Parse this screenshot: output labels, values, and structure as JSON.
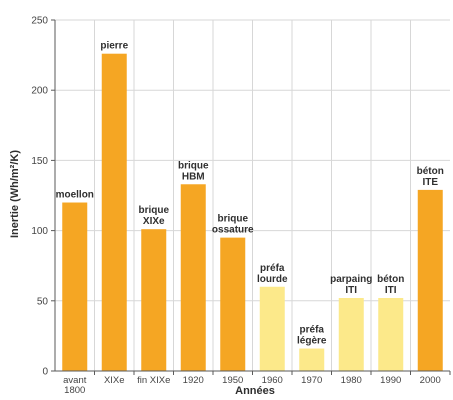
{
  "chart_data": {
    "type": "bar",
    "ylabel": "Inertie (Wh/m²/K)",
    "xlabel": "Années",
    "ylim": [
      0,
      250
    ],
    "yticks": [
      0,
      50,
      100,
      150,
      200,
      250
    ],
    "grid": true,
    "categories": [
      "avant 1800",
      "XIXe",
      "fin XIXe",
      "1920",
      "1950",
      "1960",
      "1970",
      "1980",
      "1990",
      "2000"
    ],
    "values": [
      120,
      226,
      101,
      133,
      95,
      60,
      16,
      52,
      52,
      129
    ],
    "bar_labels": [
      "moellon",
      "pierre",
      "brique XIXe",
      "brique HBM",
      "brique ossature",
      "préfa lourde",
      "préfa légère",
      "parpaing ITI",
      "béton ITI",
      "béton ITE"
    ],
    "colors": [
      "#f5a623",
      "#f5a623",
      "#f5a623",
      "#f5a623",
      "#f5a623",
      "#fce98a",
      "#fce98a",
      "#fce98a",
      "#fce98a",
      "#f5a623"
    ]
  }
}
